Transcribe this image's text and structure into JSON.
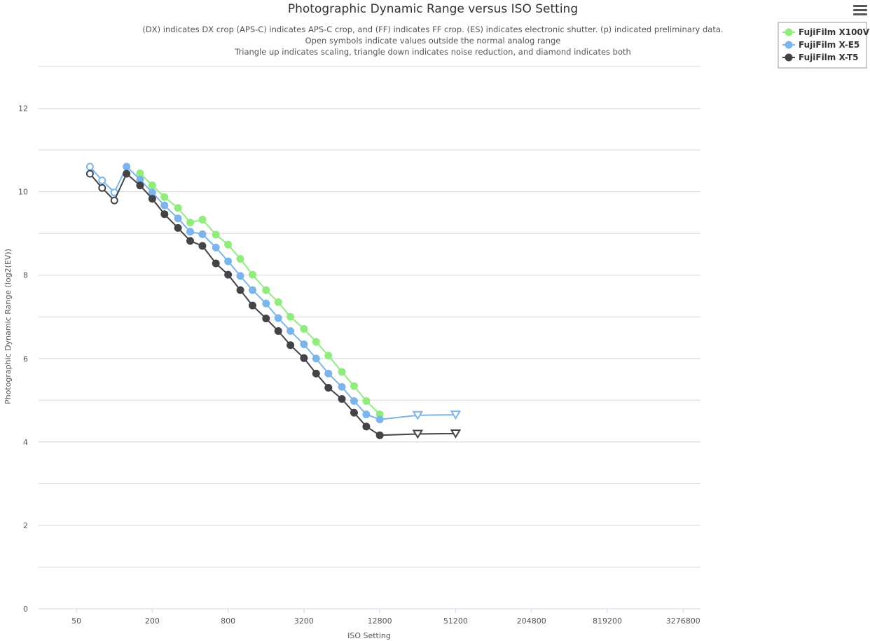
{
  "menu": {
    "icon": "hamburger-menu-icon"
  },
  "chart_data": {
    "type": "line",
    "title": "Photographic Dynamic Range versus ISO Setting",
    "subtitle": [
      "(DX) indicates DX crop (APS-C) indicates APS-C crop, and (FF) indicates FF crop. (ES) indicates electronic shutter. (p) indicated preliminary data.",
      "Open symbols indicate values outside the normal analog range",
      "Triangle up indicates scaling, triangle down indicates noise reduction, and diamond indicates both"
    ],
    "xlabel": "ISO Setting",
    "ylabel": "Photographic Dynamic Range (log2(EV))",
    "x_scale": "log2",
    "xlim": [
      25,
      4500000
    ],
    "ylim": [
      0,
      13
    ],
    "x_ticks": [
      50,
      200,
      800,
      3200,
      12800,
      51200,
      204800,
      819200,
      3276800
    ],
    "y_ticks": [
      0,
      2,
      4,
      6,
      8,
      10,
      12
    ],
    "grid": true,
    "legend_placement": "top-right",
    "series": [
      {
        "name": "FujiFilm X100V",
        "color": "#90ed7d",
        "points": [
          {
            "x": 160,
            "y": 10.44
          },
          {
            "x": 200,
            "y": 10.15
          },
          {
            "x": 250,
            "y": 9.87
          },
          {
            "x": 320,
            "y": 9.61
          },
          {
            "x": 400,
            "y": 9.26
          },
          {
            "x": 500,
            "y": 9.33
          },
          {
            "x": 640,
            "y": 8.97
          },
          {
            "x": 800,
            "y": 8.73
          },
          {
            "x": 1000,
            "y": 8.39
          },
          {
            "x": 1250,
            "y": 8.01
          },
          {
            "x": 1600,
            "y": 7.64
          },
          {
            "x": 2000,
            "y": 7.35
          },
          {
            "x": 2500,
            "y": 7.0
          },
          {
            "x": 3200,
            "y": 6.71
          },
          {
            "x": 4000,
            "y": 6.4
          },
          {
            "x": 5000,
            "y": 6.07
          },
          {
            "x": 6400,
            "y": 5.68
          },
          {
            "x": 8000,
            "y": 5.34
          },
          {
            "x": 10000,
            "y": 4.98
          },
          {
            "x": 12800,
            "y": 4.66
          }
        ]
      },
      {
        "name": "FujiFilm X-E5",
        "color": "#7cb5ec",
        "points": [
          {
            "x": 64,
            "y": 10.6,
            "marker": "open-circle"
          },
          {
            "x": 80,
            "y": 10.27,
            "marker": "open-circle"
          },
          {
            "x": 100,
            "y": 9.98,
            "marker": "open-circle"
          },
          {
            "x": 125,
            "y": 10.6
          },
          {
            "x": 160,
            "y": 10.29
          },
          {
            "x": 200,
            "y": 9.98
          },
          {
            "x": 250,
            "y": 9.67
          },
          {
            "x": 320,
            "y": 9.36
          },
          {
            "x": 400,
            "y": 9.04
          },
          {
            "x": 500,
            "y": 8.98
          },
          {
            "x": 640,
            "y": 8.66
          },
          {
            "x": 800,
            "y": 8.33
          },
          {
            "x": 1000,
            "y": 7.98
          },
          {
            "x": 1250,
            "y": 7.64
          },
          {
            "x": 1600,
            "y": 7.32
          },
          {
            "x": 2000,
            "y": 6.97
          },
          {
            "x": 2500,
            "y": 6.66
          },
          {
            "x": 3200,
            "y": 6.34
          },
          {
            "x": 4000,
            "y": 6.0
          },
          {
            "x": 5000,
            "y": 5.64
          },
          {
            "x": 6400,
            "y": 5.32
          },
          {
            "x": 8000,
            "y": 4.98
          },
          {
            "x": 10000,
            "y": 4.66
          },
          {
            "x": 12800,
            "y": 4.54
          },
          {
            "x": 25600,
            "y": 4.64,
            "marker": "open-triangle-down"
          },
          {
            "x": 51200,
            "y": 4.65,
            "marker": "open-triangle-down"
          }
        ]
      },
      {
        "name": "FujiFilm X-T5",
        "color": "#434348",
        "points": [
          {
            "x": 64,
            "y": 10.43,
            "marker": "open-circle"
          },
          {
            "x": 80,
            "y": 10.09,
            "marker": "open-circle"
          },
          {
            "x": 100,
            "y": 9.79,
            "marker": "open-circle"
          },
          {
            "x": 125,
            "y": 10.43
          },
          {
            "x": 160,
            "y": 10.15
          },
          {
            "x": 200,
            "y": 9.83
          },
          {
            "x": 250,
            "y": 9.46
          },
          {
            "x": 320,
            "y": 9.13
          },
          {
            "x": 400,
            "y": 8.82
          },
          {
            "x": 500,
            "y": 8.7
          },
          {
            "x": 640,
            "y": 8.28
          },
          {
            "x": 800,
            "y": 8.01
          },
          {
            "x": 1000,
            "y": 7.64
          },
          {
            "x": 1250,
            "y": 7.27
          },
          {
            "x": 1600,
            "y": 6.96
          },
          {
            "x": 2000,
            "y": 6.66
          },
          {
            "x": 2500,
            "y": 6.32
          },
          {
            "x": 3200,
            "y": 6.01
          },
          {
            "x": 4000,
            "y": 5.64
          },
          {
            "x": 5000,
            "y": 5.3
          },
          {
            "x": 6400,
            "y": 5.03
          },
          {
            "x": 8000,
            "y": 4.7
          },
          {
            "x": 10000,
            "y": 4.37
          },
          {
            "x": 12800,
            "y": 4.16
          },
          {
            "x": 25600,
            "y": 4.19,
            "marker": "open-triangle-down"
          },
          {
            "x": 51200,
            "y": 4.2,
            "marker": "open-triangle-down"
          }
        ]
      }
    ]
  }
}
